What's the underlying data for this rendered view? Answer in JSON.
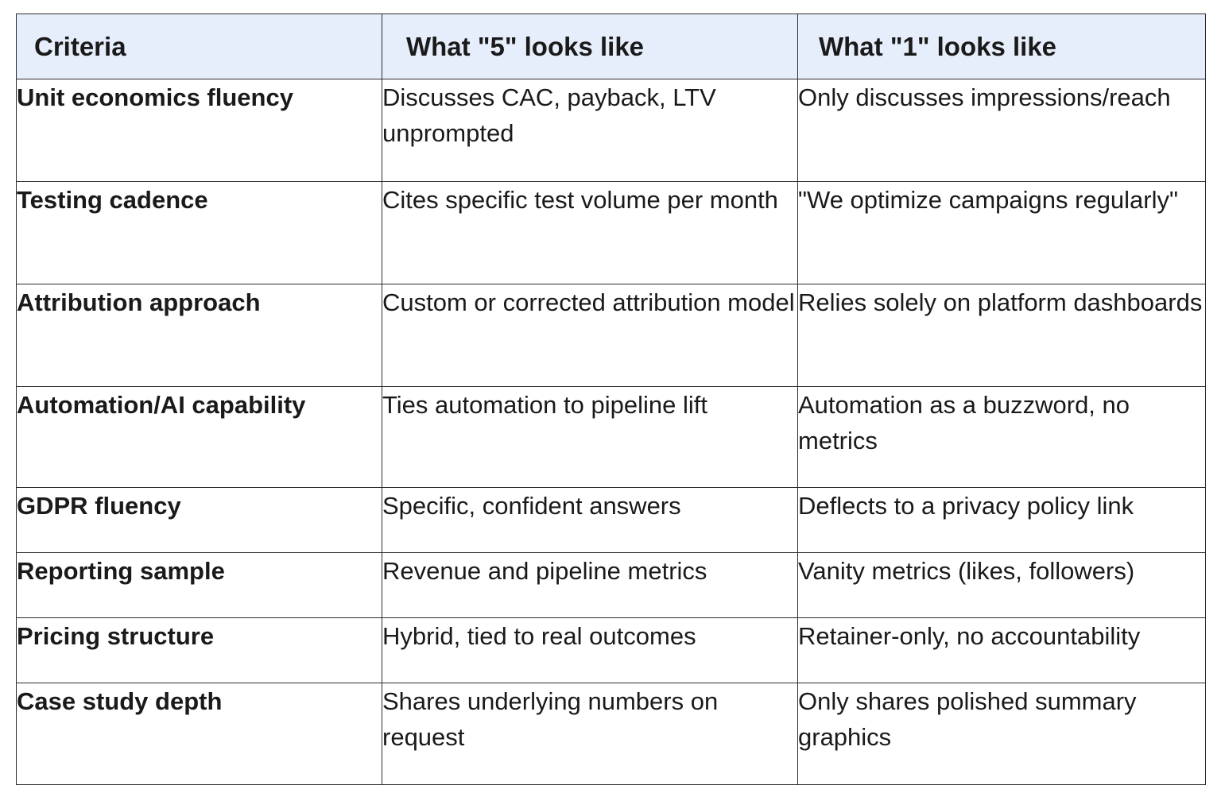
{
  "table": {
    "headers": [
      "Criteria",
      "What \"5\" looks like",
      "What \"1\" looks like"
    ],
    "rows": [
      {
        "criteria": "Unit economics fluency",
        "five": "Discusses CAC, payback, LTV unprompted",
        "one": "Only discusses impressions/reach"
      },
      {
        "criteria": "Testing cadence",
        "five": "Cites specific test volume per month",
        "one": "\"We optimize campaigns regularly\""
      },
      {
        "criteria": "Attribution approach",
        "five": "Custom or corrected attribution model",
        "one": "Relies solely on platform dashboards"
      },
      {
        "criteria": "Automation/AI capability",
        "five": "Ties automation to pipeline lift",
        "one": "Automation as a buzzword, no metrics"
      },
      {
        "criteria": "GDPR fluency",
        "five": "Specific, confident answers",
        "one": "Deflects to a privacy policy link"
      },
      {
        "criteria": "Reporting sample",
        "five": "Revenue and pipeline metrics",
        "one": "Vanity metrics (likes, followers)"
      },
      {
        "criteria": "Pricing structure",
        "five": "Hybrid, tied to real outcomes",
        "one": "Retainer-only, no accountability"
      },
      {
        "criteria": "Case study depth",
        "five": "Shares underlying numbers on request",
        "one": "Only shares polished summary graphics"
      }
    ]
  },
  "colors": {
    "header_background": "#e7eefb",
    "border": "#2b2b2b",
    "text": "#1a1a1a"
  }
}
